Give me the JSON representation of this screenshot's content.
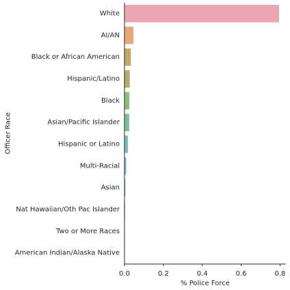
{
  "chart_data": {
    "type": "bar",
    "orientation": "horizontal",
    "xlabel": "% Police Force",
    "ylabel": "Officer Race",
    "xlim": [
      0,
      0.83
    ],
    "xticks": [
      0.0,
      0.2,
      0.4,
      0.6,
      0.8
    ],
    "xtick_labels": [
      "0.0",
      "0.2",
      "0.4",
      "0.6",
      "0.8"
    ],
    "grid": false,
    "categories": [
      "White",
      "AI/AN",
      "Black or African American",
      "Hispanic/Latino",
      "Black",
      "Asian/Pacific Islander",
      "Hispanic or Latino",
      "Multi-Racial",
      "Asian",
      "Nat Hawaiian/Oth Pac Islander",
      "Two or More Races",
      "American Indian/Alaska Native"
    ],
    "values": [
      0.795,
      0.046,
      0.033,
      0.027,
      0.025,
      0.024,
      0.018,
      0.009,
      0.005,
      0.003,
      0.002,
      0.002
    ],
    "colors": [
      "#eba5b3",
      "#e8a779",
      "#c5a86b",
      "#b2ad6b",
      "#8fbd7c",
      "#7dbf98",
      "#7fc0b4",
      "#7fbdcc",
      "#92b4e0",
      "#b3a8e4",
      "#d79ee0",
      "#e59ec7"
    ]
  }
}
